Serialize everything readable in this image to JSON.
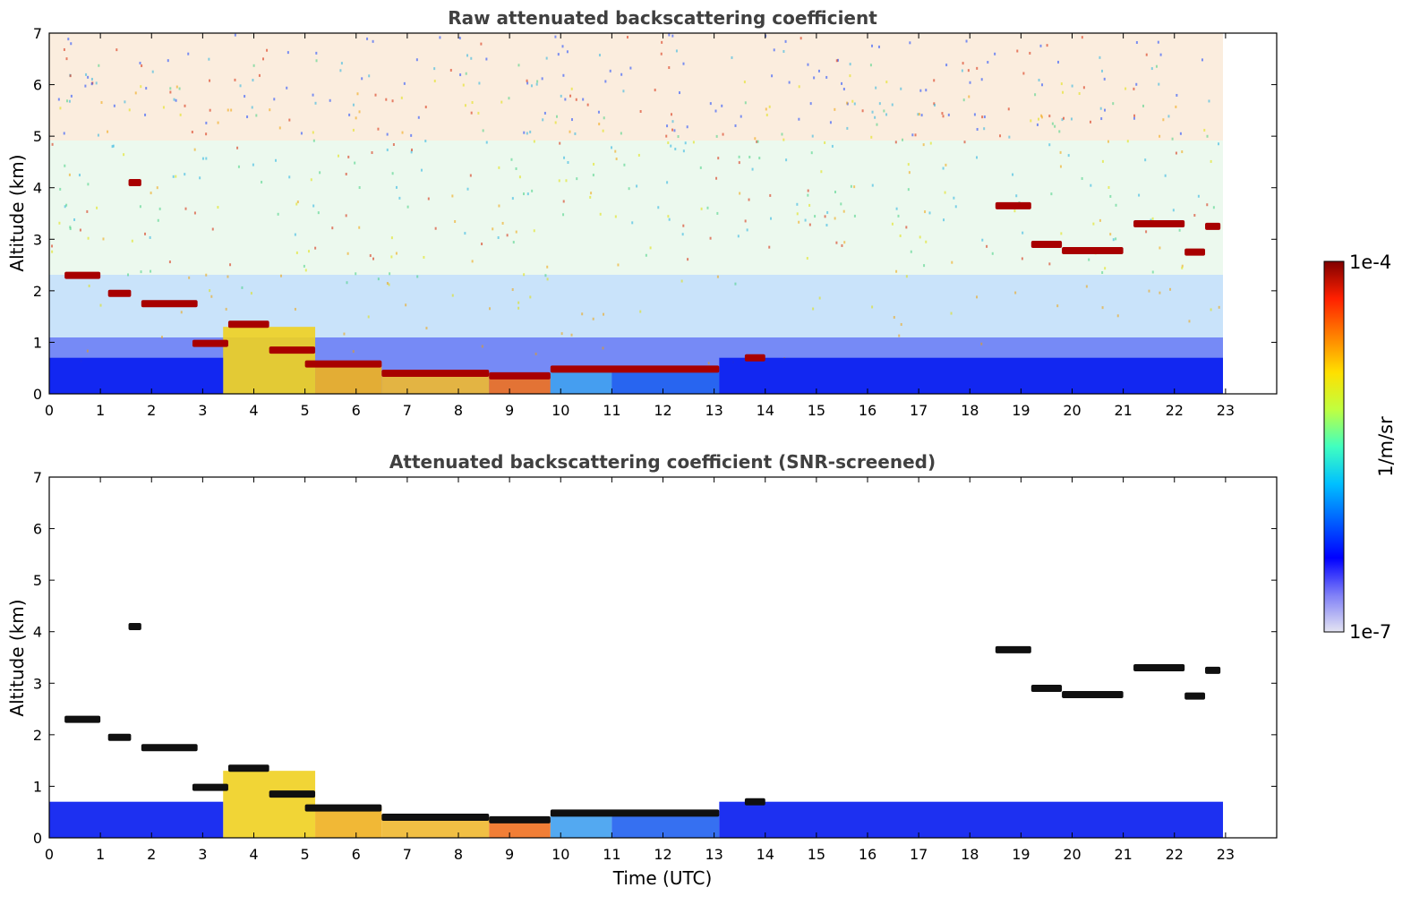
{
  "chart_data": [
    {
      "type": "heatmap",
      "title": "Raw attenuated backscattering coefficient",
      "xlabel": "",
      "ylabel": "Altitude (km)",
      "x_ticks": [
        "0",
        "1",
        "2",
        "3",
        "4",
        "5",
        "6",
        "7",
        "8",
        "9",
        "10",
        "11",
        "12",
        "13",
        "14",
        "15",
        "16",
        "17",
        "18",
        "19",
        "20",
        "21",
        "22",
        "23"
      ],
      "y_ticks": [
        "0",
        "1",
        "2",
        "3",
        "4",
        "5",
        "6",
        "7"
      ],
      "xlim": [
        0,
        24
      ],
      "ylim": [
        0,
        7
      ],
      "data_end_hour": 22.95,
      "cloud_layers": [
        {
          "start": 0.3,
          "end": 1.0,
          "altitude": 2.3
        },
        {
          "start": 1.15,
          "end": 1.6,
          "altitude": 1.95
        },
        {
          "start": 1.55,
          "end": 1.8,
          "altitude": 4.1
        },
        {
          "start": 1.8,
          "end": 2.9,
          "altitude": 1.75
        },
        {
          "start": 2.8,
          "end": 3.5,
          "altitude": 0.98
        },
        {
          "start": 3.5,
          "end": 4.3,
          "altitude": 1.35
        },
        {
          "start": 4.3,
          "end": 5.2,
          "altitude": 0.85
        },
        {
          "start": 5.0,
          "end": 6.5,
          "altitude": 0.58
        },
        {
          "start": 6.5,
          "end": 8.6,
          "altitude": 0.4
        },
        {
          "start": 8.6,
          "end": 9.8,
          "altitude": 0.35
        },
        {
          "start": 9.8,
          "end": 13.1,
          "altitude": 0.48
        },
        {
          "start": 13.6,
          "end": 14.0,
          "altitude": 0.7
        },
        {
          "start": 18.5,
          "end": 19.2,
          "altitude": 3.65
        },
        {
          "start": 19.2,
          "end": 19.8,
          "altitude": 2.9
        },
        {
          "start": 19.8,
          "end": 21.0,
          "altitude": 2.78
        },
        {
          "start": 21.2,
          "end": 22.2,
          "altitude": 3.3
        },
        {
          "start": 22.2,
          "end": 22.6,
          "altitude": 2.75
        },
        {
          "start": 22.6,
          "end": 22.9,
          "altitude": 3.25
        }
      ]
    },
    {
      "type": "heatmap",
      "title": "Attenuated backscattering coefficient (SNR-screened)",
      "xlabel": "Time (UTC)",
      "ylabel": "Altitude (km)",
      "x_ticks": [
        "0",
        "1",
        "2",
        "3",
        "4",
        "5",
        "6",
        "7",
        "8",
        "9",
        "10",
        "11",
        "12",
        "13",
        "14",
        "15",
        "16",
        "17",
        "18",
        "19",
        "20",
        "21",
        "22",
        "23"
      ],
      "y_ticks": [
        "0",
        "1",
        "2",
        "3",
        "4",
        "5",
        "6",
        "7"
      ],
      "xlim": [
        0,
        24
      ],
      "ylim": [
        0,
        7
      ],
      "data_end_hour": 22.95
    }
  ],
  "colorbar": {
    "label": "1/m/sr",
    "max_label": "1e-4",
    "min_label": "1e-7",
    "colors": [
      "#e4e4f2",
      "#7f7ff7",
      "#0000ff",
      "#0060ff",
      "#00c0ff",
      "#40ffc0",
      "#c0ff40",
      "#ffe000",
      "#ff8000",
      "#ff2000",
      "#800000"
    ]
  }
}
